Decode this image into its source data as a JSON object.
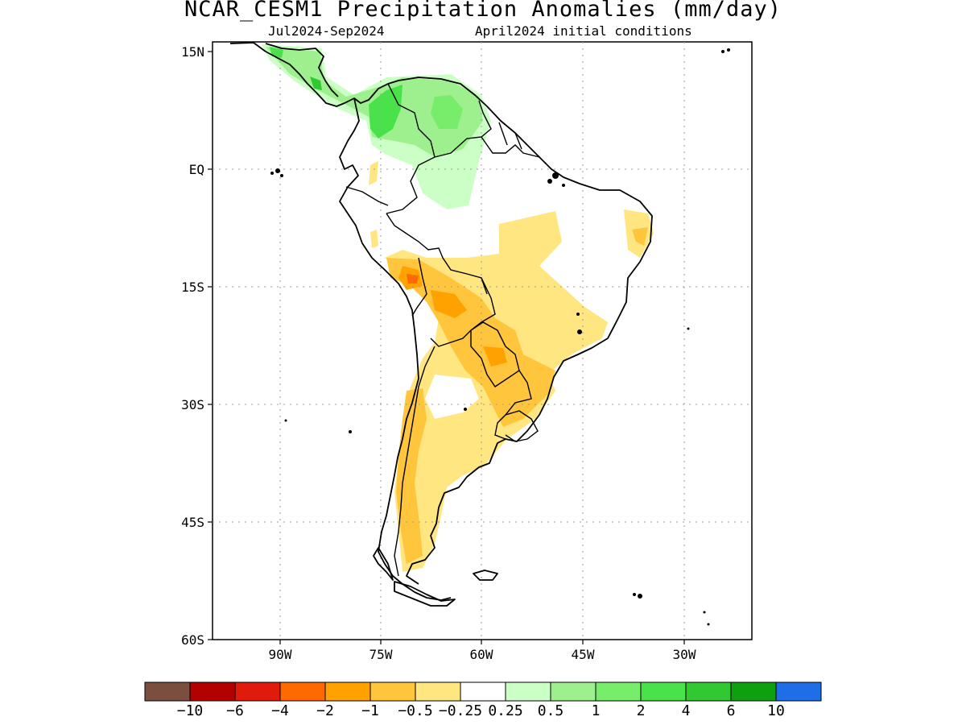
{
  "header": {
    "title": "NCAR_CESM1 Precipitation Anomalies (mm/day)",
    "period": "Jul2024-Sep2024",
    "initial_conditions": "April2024 initial conditions"
  },
  "map": {
    "lat_ticks": [
      "15N",
      "EQ",
      "15S",
      "30S",
      "45S",
      "60S"
    ],
    "lon_ticks": [
      "90W",
      "75W",
      "60W",
      "45W",
      "30W"
    ]
  },
  "colorbar": {
    "colors": [
      "#7a4f3f",
      "#b30000",
      "#e01b0b",
      "#ff6a00",
      "#ffa200",
      "#ffc53d",
      "#ffe680",
      "#ffffff",
      "#ccffc6",
      "#9ef08e",
      "#78ec6b",
      "#4ae24a",
      "#32c832",
      "#0fa00f",
      "#1e6ee8"
    ],
    "labels": [
      "−10",
      "−6",
      "−4",
      "−2",
      "−1",
      "−0.5",
      "−0.25",
      "0.25",
      "0.5",
      "1",
      "2",
      "4",
      "6",
      "10"
    ]
  }
}
